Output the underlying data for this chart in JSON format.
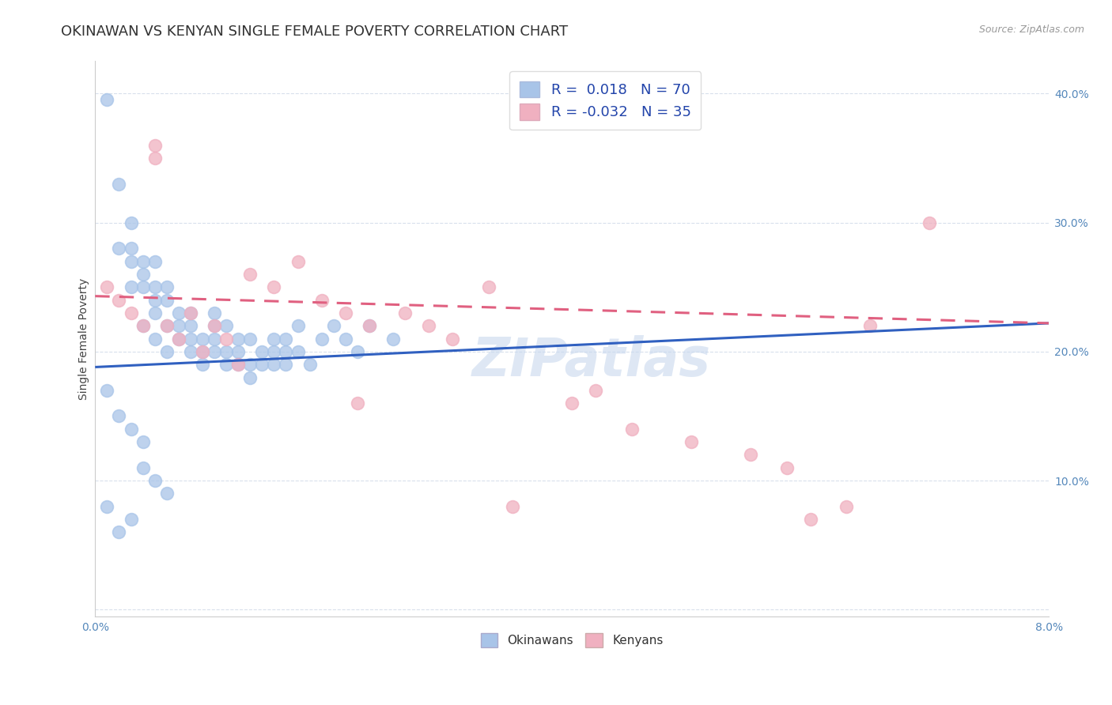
{
  "title": "OKINAWAN VS KENYAN SINGLE FEMALE POVERTY CORRELATION CHART",
  "source": "Source: ZipAtlas.com",
  "ylabel": "Single Female Poverty",
  "xlim": [
    0.0,
    0.08
  ],
  "ylim": [
    -0.005,
    0.425
  ],
  "xticks": [
    0.0,
    0.01,
    0.02,
    0.03,
    0.04,
    0.05,
    0.06,
    0.07,
    0.08
  ],
  "yticks": [
    0.0,
    0.1,
    0.2,
    0.3,
    0.4
  ],
  "okinawan_color": "#a8c4e8",
  "kenyan_color": "#f0b0c0",
  "okinawan_line_color": "#3060c0",
  "kenyan_line_color": "#e06080",
  "R_okinawan": 0.018,
  "N_okinawan": 70,
  "R_kenyan": -0.032,
  "N_kenyan": 35,
  "okinawan_x": [
    0.001,
    0.002,
    0.002,
    0.003,
    0.003,
    0.003,
    0.003,
    0.004,
    0.004,
    0.004,
    0.004,
    0.005,
    0.005,
    0.005,
    0.005,
    0.005,
    0.006,
    0.006,
    0.006,
    0.006,
    0.007,
    0.007,
    0.007,
    0.008,
    0.008,
    0.008,
    0.008,
    0.009,
    0.009,
    0.009,
    0.01,
    0.01,
    0.01,
    0.01,
    0.011,
    0.011,
    0.011,
    0.012,
    0.012,
    0.012,
    0.013,
    0.013,
    0.013,
    0.014,
    0.014,
    0.015,
    0.015,
    0.015,
    0.016,
    0.016,
    0.016,
    0.017,
    0.017,
    0.018,
    0.019,
    0.02,
    0.021,
    0.022,
    0.023,
    0.025,
    0.001,
    0.002,
    0.003,
    0.004,
    0.004,
    0.005,
    0.006,
    0.001,
    0.003,
    0.002
  ],
  "okinawan_y": [
    0.395,
    0.33,
    0.28,
    0.27,
    0.25,
    0.28,
    0.3,
    0.26,
    0.25,
    0.27,
    0.22,
    0.25,
    0.24,
    0.27,
    0.23,
    0.21,
    0.25,
    0.24,
    0.22,
    0.2,
    0.22,
    0.21,
    0.23,
    0.22,
    0.21,
    0.2,
    0.23,
    0.21,
    0.2,
    0.19,
    0.22,
    0.21,
    0.2,
    0.23,
    0.2,
    0.19,
    0.22,
    0.2,
    0.19,
    0.21,
    0.19,
    0.21,
    0.18,
    0.2,
    0.19,
    0.21,
    0.2,
    0.19,
    0.2,
    0.19,
    0.21,
    0.2,
    0.22,
    0.19,
    0.21,
    0.22,
    0.21,
    0.2,
    0.22,
    0.21,
    0.17,
    0.15,
    0.14,
    0.13,
    0.11,
    0.1,
    0.09,
    0.08,
    0.07,
    0.06
  ],
  "kenyan_x": [
    0.001,
    0.002,
    0.003,
    0.004,
    0.005,
    0.005,
    0.006,
    0.007,
    0.008,
    0.009,
    0.01,
    0.011,
    0.012,
    0.013,
    0.015,
    0.017,
    0.019,
    0.021,
    0.023,
    0.026,
    0.028,
    0.03,
    0.033,
    0.04,
    0.042,
    0.045,
    0.05,
    0.055,
    0.058,
    0.06,
    0.063,
    0.065,
    0.07,
    0.022,
    0.035
  ],
  "kenyan_y": [
    0.25,
    0.24,
    0.23,
    0.22,
    0.36,
    0.35,
    0.22,
    0.21,
    0.23,
    0.2,
    0.22,
    0.21,
    0.19,
    0.26,
    0.25,
    0.27,
    0.24,
    0.23,
    0.22,
    0.23,
    0.22,
    0.21,
    0.25,
    0.16,
    0.17,
    0.14,
    0.13,
    0.12,
    0.11,
    0.07,
    0.08,
    0.22,
    0.3,
    0.16,
    0.08
  ],
  "watermark": "ZIPatlas",
  "background_color": "#ffffff",
  "grid_color": "#d8e0ec",
  "title_fontsize": 13,
  "axis_label_fontsize": 10,
  "tick_fontsize": 10,
  "legend_fontsize": 13
}
